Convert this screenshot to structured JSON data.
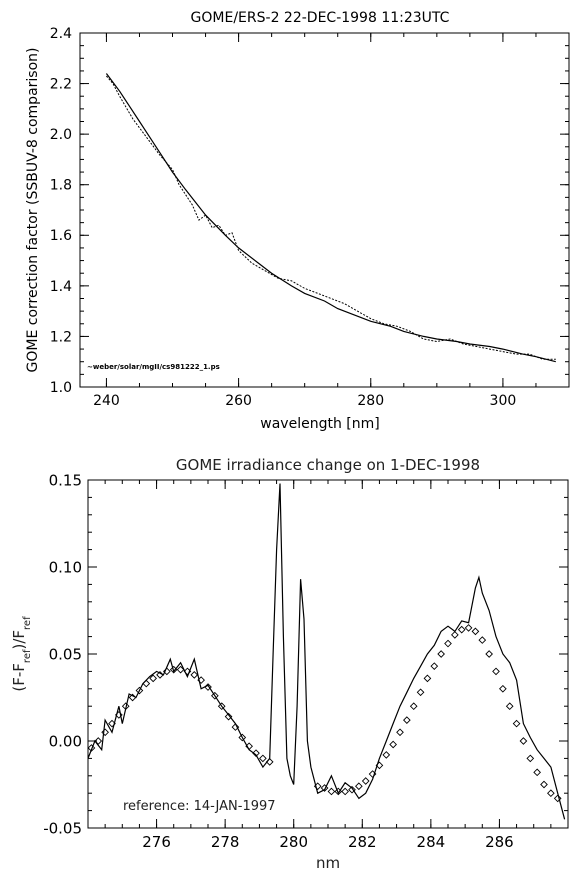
{
  "chart_data": [
    {
      "type": "line",
      "title": "GOME/ERS-2    22-DEC-1998 11:23UTC",
      "xlabel": "wavelength [nm]",
      "ylabel": "GOME correction factor (SSBUV-8 comparison)",
      "xlim": [
        236,
        310
      ],
      "ylim": [
        1.0,
        2.4
      ],
      "xticks": [
        240,
        260,
        280,
        300
      ],
      "yticks": [
        1.0,
        1.2,
        1.4,
        1.6,
        1.8,
        2.0,
        2.2,
        2.4
      ],
      "annotation": "~weber/solar/mgII/cs981222_1.ps",
      "series": [
        {
          "style": "solid",
          "x": [
            240,
            242,
            245,
            248,
            250,
            252,
            255,
            258,
            260,
            263,
            265,
            268,
            270,
            273,
            275,
            278,
            280,
            283,
            285,
            288,
            290,
            293,
            295,
            298,
            300,
            303,
            305,
            308
          ],
          "values": [
            2.24,
            2.17,
            2.05,
            1.93,
            1.85,
            1.78,
            1.68,
            1.6,
            1.55,
            1.49,
            1.45,
            1.4,
            1.37,
            1.34,
            1.31,
            1.28,
            1.26,
            1.24,
            1.22,
            1.2,
            1.19,
            1.18,
            1.17,
            1.16,
            1.15,
            1.13,
            1.12,
            1.1
          ]
        },
        {
          "style": "dotted",
          "x": [
            240,
            241,
            242,
            244,
            246,
            248,
            250,
            251,
            252,
            253,
            254,
            255,
            256,
            257,
            258,
            259,
            260,
            262,
            264,
            266,
            268,
            270,
            272,
            274,
            276,
            278,
            280,
            282,
            284,
            286,
            288,
            290,
            292,
            294,
            296,
            298,
            300,
            302,
            304,
            306,
            308
          ],
          "values": [
            2.23,
            2.2,
            2.15,
            2.06,
            1.99,
            1.92,
            1.86,
            1.8,
            1.76,
            1.72,
            1.66,
            1.68,
            1.63,
            1.64,
            1.6,
            1.61,
            1.54,
            1.49,
            1.46,
            1.43,
            1.42,
            1.39,
            1.37,
            1.35,
            1.33,
            1.3,
            1.27,
            1.25,
            1.24,
            1.22,
            1.19,
            1.18,
            1.19,
            1.17,
            1.16,
            1.15,
            1.14,
            1.13,
            1.13,
            1.11,
            1.11
          ]
        }
      ]
    },
    {
      "type": "line",
      "title": "GOME irradiance change on 1-DEC-1998",
      "xlabel": "nm",
      "ylabel": "(F-F_ref)/F_ref",
      "xlim": [
        274,
        288
      ],
      "ylim": [
        -0.05,
        0.15
      ],
      "xticks": [
        276,
        278,
        280,
        282,
        284,
        286
      ],
      "yticks": [
        -0.05,
        0.0,
        0.05,
        0.1,
        0.15
      ],
      "annotation": "reference: 14-JAN-1997",
      "series": [
        {
          "style": "solid",
          "x": [
            274.0,
            274.2,
            274.4,
            274.5,
            274.7,
            274.9,
            275.0,
            275.2,
            275.4,
            275.6,
            275.8,
            276.0,
            276.2,
            276.4,
            276.5,
            276.7,
            276.9,
            277.1,
            277.3,
            277.5,
            277.7,
            277.9,
            278.1,
            278.3,
            278.5,
            278.7,
            278.9,
            279.1,
            279.3,
            279.4,
            279.5,
            279.6,
            279.7,
            279.8,
            279.9,
            280.0,
            280.1,
            280.2,
            280.3,
            280.4,
            280.5,
            280.7,
            280.9,
            281.1,
            281.3,
            281.5,
            281.7,
            281.9,
            282.1,
            282.3,
            282.5,
            282.7,
            282.9,
            283.1,
            283.3,
            283.5,
            283.7,
            283.9,
            284.1,
            284.3,
            284.5,
            284.7,
            284.9,
            285.1,
            285.3,
            285.4,
            285.5,
            285.7,
            285.9,
            286.1,
            286.3,
            286.5,
            286.7,
            286.9,
            287.1,
            287.3,
            287.5,
            287.7,
            287.9
          ],
          "values": [
            -0.01,
            0.0,
            -0.005,
            0.012,
            0.005,
            0.02,
            0.01,
            0.027,
            0.025,
            0.033,
            0.037,
            0.04,
            0.038,
            0.047,
            0.04,
            0.045,
            0.037,
            0.047,
            0.03,
            0.032,
            0.026,
            0.02,
            0.015,
            0.01,
            0.002,
            -0.005,
            -0.008,
            -0.015,
            -0.01,
            0.05,
            0.11,
            0.148,
            0.06,
            -0.01,
            -0.02,
            -0.025,
            0.02,
            0.093,
            0.07,
            0.0,
            -0.015,
            -0.03,
            -0.028,
            -0.02,
            -0.03,
            -0.024,
            -0.027,
            -0.033,
            -0.03,
            -0.022,
            -0.01,
            0.0,
            0.01,
            0.02,
            0.028,
            0.036,
            0.043,
            0.05,
            0.055,
            0.063,
            0.066,
            0.063,
            0.069,
            0.068,
            0.088,
            0.094,
            0.085,
            0.075,
            0.06,
            0.05,
            0.045,
            0.035,
            0.01,
            0.002,
            -0.005,
            -0.01,
            -0.015,
            -0.03,
            -0.045
          ]
        },
        {
          "style": "diamond",
          "x": [
            274.1,
            274.3,
            274.5,
            274.7,
            274.9,
            275.1,
            275.3,
            275.5,
            275.7,
            275.9,
            276.1,
            276.3,
            276.5,
            276.7,
            276.9,
            277.1,
            277.3,
            277.5,
            277.7,
            277.9,
            278.1,
            278.3,
            278.5,
            278.7,
            278.9,
            279.1,
            279.3,
            280.7,
            280.9,
            281.1,
            281.3,
            281.5,
            281.7,
            281.9,
            282.1,
            282.3,
            282.5,
            282.7,
            282.9,
            283.1,
            283.3,
            283.5,
            283.7,
            283.9,
            284.1,
            284.3,
            284.5,
            284.7,
            284.9,
            285.1,
            285.3,
            285.5,
            285.7,
            285.9,
            286.1,
            286.3,
            286.5,
            286.7,
            286.9,
            287.1,
            287.3,
            287.5,
            287.7
          ],
          "values": [
            -0.004,
            0.0,
            0.005,
            0.01,
            0.015,
            0.02,
            0.025,
            0.029,
            0.033,
            0.036,
            0.038,
            0.04,
            0.041,
            0.041,
            0.04,
            0.038,
            0.035,
            0.031,
            0.026,
            0.02,
            0.014,
            0.008,
            0.002,
            -0.003,
            -0.007,
            -0.01,
            -0.012,
            -0.026,
            -0.027,
            -0.029,
            -0.029,
            -0.029,
            -0.028,
            -0.026,
            -0.023,
            -0.019,
            -0.014,
            -0.008,
            -0.002,
            0.005,
            0.012,
            0.02,
            0.028,
            0.036,
            0.043,
            0.05,
            0.056,
            0.061,
            0.064,
            0.065,
            0.063,
            0.058,
            0.05,
            0.04,
            0.03,
            0.02,
            0.01,
            0.0,
            -0.01,
            -0.018,
            -0.025,
            -0.03,
            -0.033
          ]
        }
      ]
    }
  ]
}
